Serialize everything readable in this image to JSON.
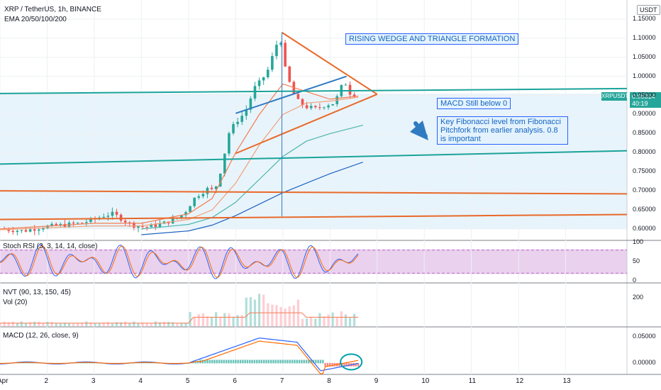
{
  "header": {
    "symbol_line": "XRP / TetherUS, 1h, BINANCE",
    "ema_line": "EMA 20/50/100/200",
    "currency_badge": "USDT",
    "price_tag": "0.95314",
    "countdown": "40:19",
    "symbol_tag": "XRPUSDT"
  },
  "annotations": {
    "title": "RISING WEDGE AND TRIANGLE FORMATION",
    "macd_note": "MACD Still below 0",
    "fib_note": "Key Fibonacci level from Fibonacci Pitchfork from earlier analysis. 0.8 is important"
  },
  "panels": {
    "stoch": "Stoch RSI (3, 3, 14, 14, close)",
    "nvt": "NVT (90, 13, 150, 45)",
    "vol": "Vol (20)",
    "macd": "MACD (12, 26, close, 9)"
  },
  "colors": {
    "up": "#26a69a",
    "down": "#ef5350",
    "orange": "#e8692a",
    "blue": "#2e7bc2",
    "teal": "#1aa39a",
    "ema20": "#f57c52",
    "ema50": "#f2a07a",
    "ema100": "#4db6ac",
    "ema200": "#1e63c4",
    "stoch_band": "#e1bee7",
    "band": "#e8f4fb"
  },
  "chart_data": [
    {
      "type": "line",
      "title": "XRP / TetherUS, 1h, BINANCE",
      "x_ticks": [
        "Apr",
        "2",
        "3",
        "4",
        "5",
        "6",
        "7",
        "8",
        "9",
        "10",
        "11",
        "12",
        "13"
      ],
      "y_ticks": [
        "1.15000",
        "1.10000",
        "1.05000",
        "1.00000",
        "0.95000",
        "0.90000",
        "0.85000",
        "0.80000",
        "0.75000",
        "0.70000",
        "0.65000",
        "0.60000"
      ],
      "ylim": [
        0.572,
        1.2
      ],
      "xlim": [
        1,
        14.3
      ],
      "last_price": 0.95314,
      "price_path": [
        [
          1.0,
          0.6
        ],
        [
          1.5,
          0.595
        ],
        [
          1.9,
          0.605
        ],
        [
          2.3,
          0.61
        ],
        [
          2.7,
          0.615
        ],
        [
          3.0,
          0.625
        ],
        [
          3.2,
          0.635
        ],
        [
          3.4,
          0.64
        ],
        [
          3.6,
          0.625
        ],
        [
          3.8,
          0.61
        ],
        [
          4.1,
          0.605
        ],
        [
          4.4,
          0.612
        ],
        [
          4.7,
          0.625
        ],
        [
          4.9,
          0.64
        ],
        [
          5.15,
          0.685
        ],
        [
          5.4,
          0.705
        ],
        [
          5.55,
          0.7
        ],
        [
          5.7,
          0.76
        ],
        [
          5.85,
          0.85
        ],
        [
          6.0,
          0.88
        ],
        [
          6.2,
          0.905
        ],
        [
          6.4,
          0.97
        ],
        [
          6.55,
          0.99
        ],
        [
          6.7,
          1.02
        ],
        [
          6.85,
          1.08
        ],
        [
          6.95,
          1.1
        ],
        [
          7.05,
          1.02
        ],
        [
          7.2,
          0.96
        ],
        [
          7.35,
          0.93
        ],
        [
          7.5,
          0.92
        ],
        [
          7.7,
          0.915
        ],
        [
          7.9,
          0.925
        ],
        [
          8.1,
          0.93
        ],
        [
          8.3,
          0.99
        ],
        [
          8.45,
          0.95
        ],
        [
          8.6,
          0.955
        ]
      ],
      "series": [
        {
          "name": "EMA 20",
          "points": [
            [
              1.0,
              0.6
            ],
            [
              3.0,
              0.615
            ],
            [
              4.0,
              0.615
            ],
            [
              5.0,
              0.64
            ],
            [
              5.5,
              0.68
            ],
            [
              6.0,
              0.8
            ],
            [
              6.5,
              0.9
            ],
            [
              7.0,
              0.98
            ],
            [
              7.5,
              0.96
            ],
            [
              8.0,
              0.94
            ],
            [
              8.6,
              0.948
            ]
          ]
        },
        {
          "name": "EMA 50",
          "points": [
            [
              1.0,
              0.598
            ],
            [
              3.0,
              0.608
            ],
            [
              4.0,
              0.608
            ],
            [
              5.0,
              0.625
            ],
            [
              5.5,
              0.65
            ],
            [
              6.0,
              0.72
            ],
            [
              6.5,
              0.82
            ],
            [
              7.0,
              0.9
            ],
            [
              7.5,
              0.93
            ],
            [
              8.0,
              0.935
            ],
            [
              8.6,
              0.945
            ]
          ]
        },
        {
          "name": "EMA 100",
          "points": [
            [
              4.0,
              0.6
            ],
            [
              5.0,
              0.612
            ],
            [
              5.5,
              0.63
            ],
            [
              6.0,
              0.67
            ],
            [
              6.5,
              0.73
            ],
            [
              7.0,
              0.79
            ],
            [
              7.5,
              0.83
            ],
            [
              8.0,
              0.85
            ],
            [
              8.7,
              0.872
            ]
          ]
        },
        {
          "name": "EMA 200",
          "points": [
            [
              4.0,
              0.585
            ],
            [
              5.0,
              0.595
            ],
            [
              5.5,
              0.61
            ],
            [
              6.0,
              0.635
            ],
            [
              6.5,
              0.665
            ],
            [
              7.0,
              0.695
            ],
            [
              7.5,
              0.72
            ],
            [
              8.0,
              0.745
            ],
            [
              8.7,
              0.775
            ]
          ]
        }
      ],
      "drawings": [
        {
          "kind": "triangle_upper",
          "color": "orange",
          "points": [
            [
              6.98,
              1.115
            ],
            [
              9.0,
              0.953
            ]
          ]
        },
        {
          "kind": "triangle_lower",
          "color": "orange",
          "points": [
            [
              6.0,
              0.798
            ],
            [
              9.0,
              0.953
            ]
          ]
        },
        {
          "kind": "wedge_upper",
          "color": "blue",
          "points": [
            [
              6.0,
              0.903
            ],
            [
              8.35,
              1.0
            ]
          ]
        },
        {
          "kind": "fib_level",
          "color": "teal",
          "points": [
            [
              1.0,
              0.77
            ],
            [
              14.3,
              0.805
            ]
          ]
        },
        {
          "kind": "level",
          "color": "orange",
          "points": [
            [
              1.0,
              0.7
            ],
            [
              14.3,
              0.692
            ]
          ]
        },
        {
          "kind": "level",
          "color": "orange",
          "points": [
            [
              1.0,
              0.625
            ],
            [
              14.3,
              0.638
            ]
          ]
        },
        {
          "kind": "channel_top",
          "color": "teal",
          "points": [
            [
              1.0,
              0.955
            ],
            [
              14.3,
              0.968
            ]
          ]
        },
        {
          "kind": "vertical",
          "color": "blue",
          "points": [
            [
              6.98,
              0.633
            ],
            [
              6.98,
              1.115
            ]
          ]
        }
      ]
    },
    {
      "type": "line",
      "title": "Stoch RSI (3, 3, 14, 14, close)",
      "y_ticks": [
        "100",
        "50",
        "0"
      ],
      "ylim": [
        0,
        100
      ],
      "band": [
        20,
        80
      ]
    },
    {
      "type": "bar",
      "title": "Vol (20)",
      "y_ticks": [
        "200"
      ]
    },
    {
      "type": "bar",
      "title": "MACD (12, 26, close, 9)",
      "y_ticks": [
        "0.05000",
        "0.00000"
      ],
      "ylim": [
        -0.022,
        0.068
      ]
    }
  ]
}
